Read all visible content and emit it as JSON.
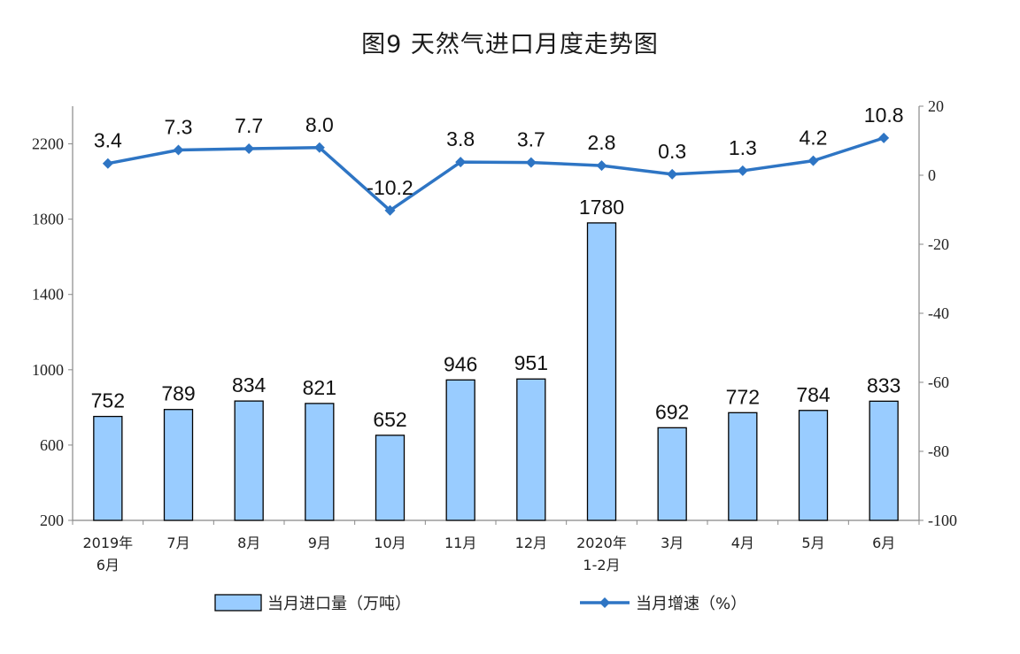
{
  "chart_data": {
    "type": "bar",
    "title": "图9  天然气进口月度走势图",
    "categories": [
      [
        "2019年",
        "6月"
      ],
      [
        "7月"
      ],
      [
        "8月"
      ],
      [
        "9月"
      ],
      [
        "10月"
      ],
      [
        "11月"
      ],
      [
        "12月"
      ],
      [
        "2020年",
        "1-2月"
      ],
      [
        "3月"
      ],
      [
        "4月"
      ],
      [
        "5月"
      ],
      [
        "6月"
      ]
    ],
    "series": [
      {
        "name": "当月进口量（万吨）",
        "type": "bar",
        "axis": "left",
        "values": [
          752,
          789,
          834,
          821,
          652,
          946,
          951,
          1780,
          692,
          772,
          784,
          833
        ],
        "labels": [
          "752",
          "789",
          "834",
          "821",
          "652",
          "946",
          "951",
          "1780",
          "692",
          "772",
          "784",
          "833"
        ],
        "color": "#99ccff",
        "stroke": "#000000"
      },
      {
        "name": "当月增速（%）",
        "type": "line",
        "axis": "right",
        "values": [
          3.4,
          7.3,
          7.7,
          8.0,
          -10.2,
          3.8,
          3.7,
          2.8,
          0.3,
          1.3,
          4.2,
          10.8
        ],
        "labels": [
          "3.4",
          "7.3",
          "7.7",
          "8.0",
          "-10.2",
          "3.8",
          "3.7",
          "2.8",
          "0.3",
          "1.3",
          "4.2",
          "10.8"
        ],
        "color": "#2e75c4"
      }
    ],
    "y_left": {
      "min": 200,
      "max": 2400,
      "ticks": [
        200,
        600,
        1000,
        1400,
        1800,
        2200
      ],
      "tick_labels": [
        "200",
        "600",
        "1000",
        "1400",
        "1800",
        "2200"
      ]
    },
    "y_right": {
      "min": -100,
      "max": 20,
      "ticks": [
        -100,
        -80,
        -60,
        -40,
        -20,
        0,
        20
      ],
      "tick_labels": [
        "-100",
        "-80",
        "-60",
        "-40",
        "-20",
        "0",
        "20"
      ]
    },
    "legend": {
      "placement": "bottom",
      "items": [
        "当月进口量（万吨）",
        "当月增速（%）"
      ]
    },
    "grid": false
  }
}
